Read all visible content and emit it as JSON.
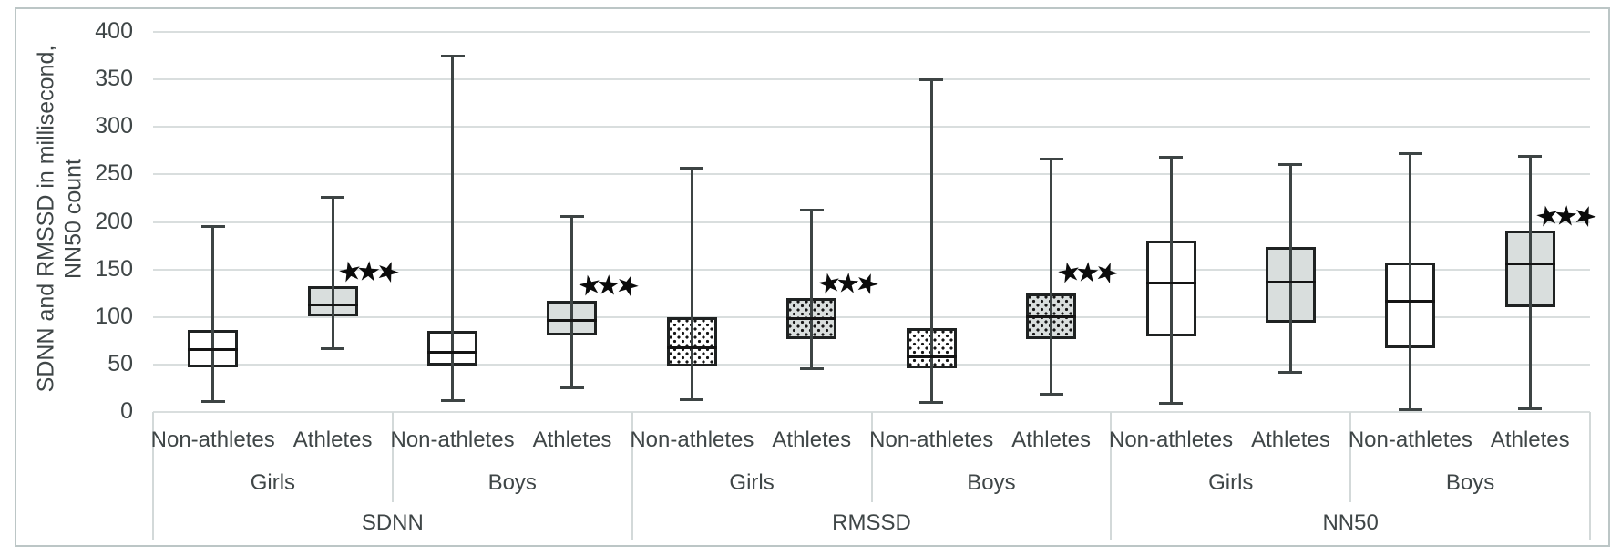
{
  "figure": {
    "y_axis_title_line1": "SDNN and RMSSD in millisecond,",
    "y_axis_title_line2": "NN50 count"
  },
  "chart_data": {
    "type": "boxplot",
    "title": "",
    "ylabel": "SDNN and RMSSD in millisecond, NN50 count",
    "ylim": [
      0,
      400
    ],
    "ytick_step": 50,
    "ytick_labels": [
      "0",
      "50",
      "100",
      "150",
      "200",
      "250",
      "300",
      "350",
      "400"
    ],
    "grid": true,
    "significance_marker": "three black stars above athlete boxes",
    "star_glyph": "★",
    "colors": {
      "box_fill_white": "#ffffff",
      "box_fill_gray": "#d9dedd",
      "box_stroke": "#1f2222",
      "whisker": "#3d4444",
      "median": "#141414",
      "gridline": "#d9dede",
      "axis_table_line": "#d3d9d9",
      "text": "#3f4647",
      "frame": "#bcc6c6",
      "star": "#0b0b0b"
    },
    "sections": [
      {
        "label": "SDNN",
        "genders": [
          {
            "label": "Girls",
            "boxes": [
              {
                "label": "Non-athletes",
                "fill": "white",
                "pattern": "none",
                "min": 11,
                "q1": 47,
                "median": 66,
                "q3": 86,
                "max": 195,
                "stars": false
              },
              {
                "label": "Athletes",
                "fill": "gray",
                "pattern": "none",
                "min": 67,
                "q1": 101,
                "median": 113,
                "q3": 132,
                "max": 226,
                "stars": true,
                "stars_count": 3,
                "stars_y": 147
              }
            ]
          },
          {
            "label": "Boys",
            "boxes": [
              {
                "label": "Non-athletes",
                "fill": "white",
                "pattern": "none",
                "min": 12,
                "q1": 49,
                "median": 63,
                "q3": 85,
                "max": 375,
                "stars": false
              },
              {
                "label": "Athletes",
                "fill": "gray",
                "pattern": "none",
                "min": 25,
                "q1": 81,
                "median": 96,
                "q3": 117,
                "max": 206,
                "stars": true,
                "stars_count": 3,
                "stars_y": 132
              }
            ]
          }
        ]
      },
      {
        "label": "RMSSD",
        "genders": [
          {
            "label": "Girls",
            "boxes": [
              {
                "label": "Non-athletes",
                "fill": "white",
                "pattern": "dots",
                "min": 13,
                "q1": 48,
                "median": 68,
                "q3": 100,
                "max": 257,
                "stars": false
              },
              {
                "label": "Athletes",
                "fill": "gray",
                "pattern": "dots",
                "min": 46,
                "q1": 77,
                "median": 98,
                "q3": 120,
                "max": 212,
                "stars": true,
                "stars_count": 3,
                "stars_y": 134
              }
            ]
          },
          {
            "label": "Boys",
            "boxes": [
              {
                "label": "Non-athletes",
                "fill": "white",
                "pattern": "dots",
                "min": 10,
                "q1": 46,
                "median": 58,
                "q3": 88,
                "max": 350,
                "stars": false
              },
              {
                "label": "Athletes",
                "fill": "gray",
                "pattern": "dots",
                "min": 19,
                "q1": 77,
                "median": 100,
                "q3": 125,
                "max": 266,
                "stars": true,
                "stars_count": 3,
                "stars_y": 146
              }
            ]
          }
        ]
      },
      {
        "label": "NN50",
        "genders": [
          {
            "label": "Girls",
            "boxes": [
              {
                "label": "Non-athletes",
                "fill": "white",
                "pattern": "none",
                "min": 9,
                "q1": 80,
                "median": 136,
                "q3": 180,
                "max": 268,
                "stars": false
              },
              {
                "label": "Athletes",
                "fill": "gray",
                "pattern": "none",
                "min": 42,
                "q1": 94,
                "median": 137,
                "q3": 174,
                "max": 260,
                "stars": false
              }
            ]
          },
          {
            "label": "Boys",
            "boxes": [
              {
                "label": "Non-athletes",
                "fill": "white",
                "pattern": "none",
                "min": 2,
                "q1": 67,
                "median": 117,
                "q3": 157,
                "max": 272,
                "stars": false
              },
              {
                "label": "Athletes",
                "fill": "gray",
                "pattern": "none",
                "min": 3,
                "q1": 110,
                "median": 156,
                "q3": 191,
                "max": 269,
                "stars": true,
                "stars_count": 3,
                "stars_y": 205
              }
            ]
          }
        ]
      }
    ]
  }
}
